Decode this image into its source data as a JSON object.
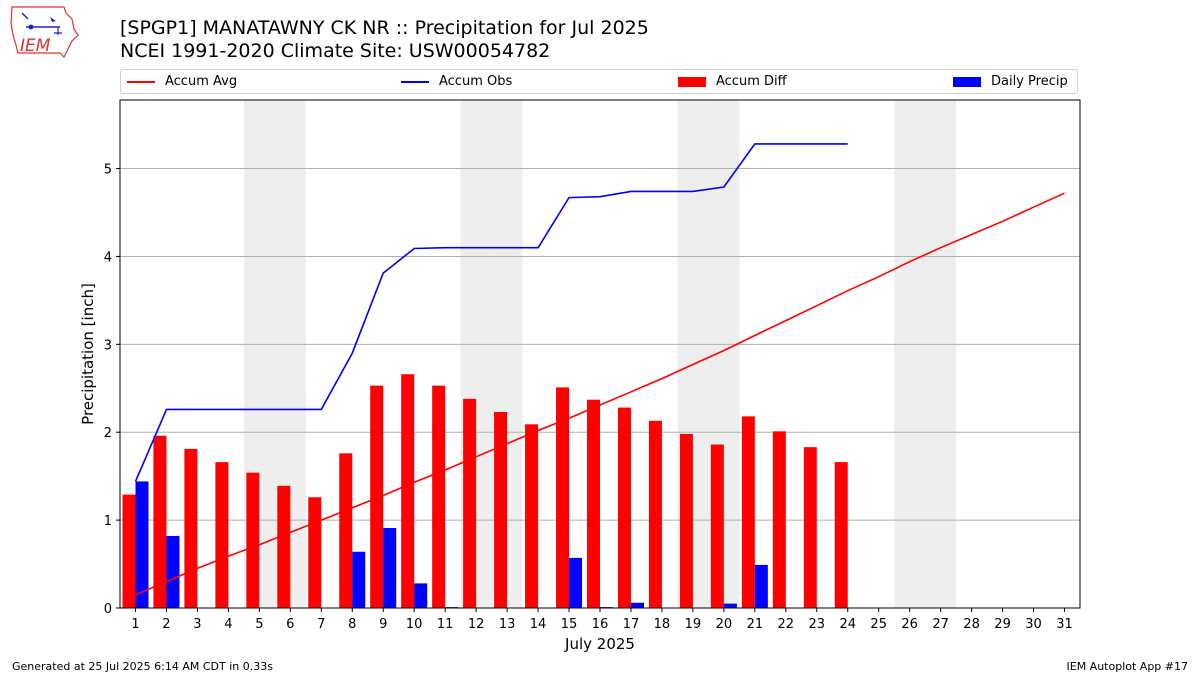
{
  "logo": {
    "text": "IEM"
  },
  "header": {
    "title1": "[SPGP1] MANATAWNY CK NR :: Precipitation for Jul 2025",
    "title2": "NCEI 1991-2020 Climate Site: USW00054782"
  },
  "legend": {
    "accum_avg": "Accum Avg",
    "accum_obs": "Accum Obs",
    "accum_diff": "Accum Diff",
    "daily_precip": "Daily Precip"
  },
  "footer": {
    "left": "Generated at 25 Jul 2025 6:14 AM CDT in 0.33s",
    "right": "IEM Autoplot App #17"
  },
  "colors": {
    "avg": "#ff0000",
    "obs": "#0000ff",
    "diff": "#ff0000",
    "daily": "#0000ff",
    "weekend": "#eeeeee",
    "grid": "#b0b0b0"
  },
  "chart_data": {
    "type": "bar",
    "xlabel": "July 2025",
    "ylabel": "Precipitation [inch]",
    "xlim": [
      0.5,
      31.5
    ],
    "ylim": [
      0,
      5.78
    ],
    "yticks": [
      0,
      1,
      2,
      3,
      4,
      5
    ],
    "grid": "y",
    "legend": "top",
    "weekend_days": [
      5,
      6,
      12,
      13,
      19,
      20,
      26,
      27
    ],
    "days": [
      1,
      2,
      3,
      4,
      5,
      6,
      7,
      8,
      9,
      10,
      11,
      12,
      13,
      14,
      15,
      16,
      17,
      18,
      19,
      20,
      21,
      22,
      23,
      24,
      25,
      26,
      27,
      28,
      29,
      30,
      31
    ],
    "series": [
      {
        "name": "Accum Diff",
        "kind": "bar",
        "days": [
          1,
          2,
          3,
          4,
          5,
          6,
          7,
          8,
          9,
          10,
          11,
          12,
          13,
          14,
          15,
          16,
          17,
          18,
          19,
          20,
          21,
          22,
          23,
          24
        ],
        "values": [
          1.29,
          1.96,
          1.81,
          1.66,
          1.54,
          1.39,
          1.26,
          1.76,
          2.53,
          2.66,
          2.53,
          2.38,
          2.23,
          2.09,
          2.51,
          2.37,
          2.28,
          2.13,
          1.98,
          1.86,
          2.18,
          2.01,
          1.83,
          1.66
        ]
      },
      {
        "name": "Daily Precip",
        "kind": "bar",
        "days": [
          1,
          2,
          3,
          4,
          5,
          6,
          7,
          8,
          9,
          10,
          11,
          12,
          13,
          14,
          15,
          16,
          17,
          18,
          19,
          20,
          21,
          22,
          23,
          24
        ],
        "values": [
          1.44,
          0.82,
          0,
          0,
          0,
          0,
          0,
          0.64,
          0.91,
          0.28,
          0.01,
          0,
          0,
          0,
          0.57,
          0.01,
          0.06,
          0,
          0,
          0.05,
          0.49,
          0,
          0,
          0
        ]
      },
      {
        "name": "Accum Obs",
        "kind": "line",
        "days": [
          1,
          2,
          3,
          4,
          5,
          6,
          7,
          8,
          9,
          10,
          11,
          12,
          13,
          14,
          15,
          16,
          17,
          18,
          19,
          20,
          21,
          22,
          23,
          24
        ],
        "values": [
          1.44,
          2.26,
          2.26,
          2.26,
          2.26,
          2.26,
          2.26,
          2.9,
          3.81,
          4.09,
          4.1,
          4.1,
          4.1,
          4.1,
          4.67,
          4.68,
          4.74,
          4.74,
          4.74,
          4.79,
          5.28,
          5.28,
          5.28,
          5.28
        ]
      },
      {
        "name": "Accum Avg",
        "kind": "line",
        "days": [
          1,
          2,
          3,
          4,
          5,
          6,
          7,
          8,
          9,
          10,
          11,
          12,
          13,
          14,
          15,
          16,
          17,
          18,
          19,
          20,
          21,
          22,
          23,
          24,
          25,
          26,
          27,
          28,
          29,
          30,
          31
        ],
        "values": [
          0.15,
          0.3,
          0.45,
          0.59,
          0.72,
          0.86,
          1.0,
          1.14,
          1.28,
          1.43,
          1.57,
          1.72,
          1.87,
          2.02,
          2.16,
          2.31,
          2.46,
          2.61,
          2.77,
          2.93,
          3.1,
          3.27,
          3.44,
          3.61,
          3.77,
          3.94,
          4.1,
          4.25,
          4.4,
          4.56,
          4.72
        ]
      }
    ]
  }
}
